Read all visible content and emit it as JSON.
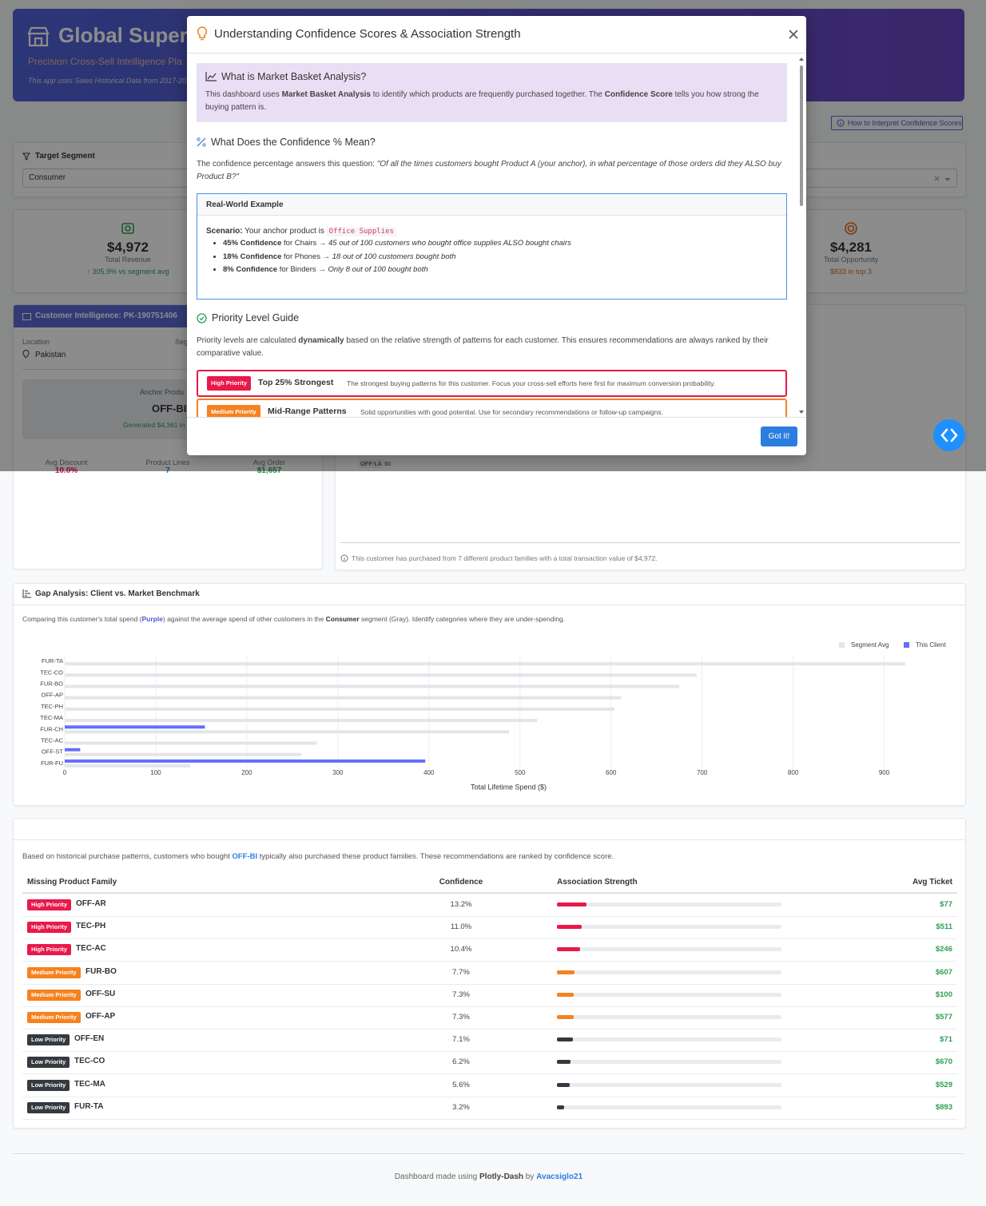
{
  "header": {
    "title": "Global Supers",
    "subtitle": "Precision Cross-Sell Intelligence Pla",
    "note": "This app uses Sales Historical Data from 2017-20"
  },
  "help_button": "How to Interpret Confidence Scores",
  "filters": {
    "label": "Target Segment",
    "segment": "Consumer"
  },
  "kpis": [
    {
      "value": "$4,972",
      "label": "Total Revenue",
      "delta": "↑ 305.9% vs segment avg"
    },
    {
      "value": "$4,281",
      "label": "Total Opportunity",
      "delta": "$833 in top 3"
    }
  ],
  "customer": {
    "title": "Customer Intelligence: PK-190751406",
    "location_label": "Location",
    "location": "Pakistan",
    "segment_label": "Seg",
    "anchor_label": "Anchor Produ",
    "anchor": "OFF-BI",
    "anchor_note": "Generated $4,361 in",
    "stats": [
      {
        "label": "Avg Discount",
        "value": "10.0%"
      },
      {
        "label": "Product Lines",
        "value": "7"
      },
      {
        "label": "Avg Order",
        "value": "$1,657"
      }
    ]
  },
  "history": {
    "item": "OFF-LA",
    "value": "$6",
    "note": "This customer has purchased from 7 different product families with a total transaction value of $4,972."
  },
  "modal": {
    "title": "Understanding Confidence Scores & Association Strength",
    "mba_title": "What is Market Basket Analysis?",
    "mba_text": [
      "This dashboard uses ",
      "Market Basket Analysis",
      " to identify which products are frequently purchased together. The ",
      "Confidence Score",
      " tells you how strong the buying pattern is."
    ],
    "conf_title": "What Does the Confidence % Mean?",
    "conf_text": [
      "The confidence percentage answers this question: ",
      "\"Of all the times customers bought Product A (your anchor), in what percentage of those orders did they ALSO buy Product B?\""
    ],
    "example_title": "Real-World Example",
    "scenario": [
      "Scenario:",
      " Your anchor product is ",
      "Office Supplies"
    ],
    "bullets": [
      {
        "strong": "45% Confidence",
        "text": " for Chairs → ",
        "em": "45 out of 100 customers who bought office supplies ALSO bought chairs"
      },
      {
        "strong": "18% Confidence",
        "text": " for Phones → ",
        "em": "18 out of 100 customers bought both"
      },
      {
        "strong": "8% Confidence",
        "text": " for Binders → ",
        "em": "Only 8 out of 100 bought both"
      }
    ],
    "priority_title": "Priority Level Guide",
    "priority_text": [
      "Priority levels are calculated ",
      "dynamically",
      " based on the relative strength of patterns for each customer. This ensures recommendations are always ranked by their comparative value."
    ],
    "priorities": [
      {
        "badge": "High Priority",
        "name": "Top 25% Strongest",
        "desc": "The strongest buying patterns for this customer. Focus your cross-sell efforts here first for maximum conversion probability.",
        "color": "#e8194b"
      },
      {
        "badge": "Medium Priority",
        "name": "Mid-Range Patterns",
        "desc": "Solid opportunities with good potential. Use for secondary recommendations or follow-up campaigns.",
        "color": "#f58220"
      }
    ],
    "button": "Got it!"
  },
  "gap_analysis": {
    "description": [
      "Comparing this customer's total spend (",
      "Purple",
      ") against the average spend of other customers in the ",
      "Consumer",
      " segment (Gray). Identify categories where they are under-spending."
    ]
  },
  "chart_data": {
    "type": "bar",
    "orientation": "horizontal",
    "title": "Gap Analysis: Client vs. Market Benchmark",
    "categories": [
      "FUR-TA",
      "TEC-CO",
      "FUR-BO",
      "OFF-AP",
      "TEC-PH",
      "TEC-MA",
      "FUR-CH",
      "TEC-AC",
      "OFF-ST",
      "FUR-FU"
    ],
    "series": [
      {
        "name": "Segment Avg",
        "color": "#e3e5e8",
        "values": [
          923,
          694,
          675,
          611,
          604,
          519,
          488,
          277,
          260,
          138
        ]
      },
      {
        "name": "This Client",
        "color": "#636efa",
        "values": [
          0,
          0,
          0,
          0,
          0,
          0,
          154,
          0,
          17,
          396
        ]
      }
    ],
    "xlim": [
      0,
      975
    ],
    "xticks": [
      0,
      100,
      200,
      300,
      400,
      500,
      600,
      700,
      800,
      900
    ],
    "xlabel": "Total Lifetime Spend ($)",
    "grid": true,
    "legend": "top-right"
  },
  "recommendations": {
    "description": [
      "Based on historical purchase patterns, customers who bought ",
      "OFF-BI",
      " typically also purchased these product families. These recommendations are ranked by confidence score."
    ],
    "columns": [
      "Missing Product Family",
      "Confidence",
      "Association Strength",
      "Avg Ticket"
    ],
    "rows": [
      {
        "priority": "High Priority",
        "color": "#e8194b",
        "family": "OFF-AR",
        "confidence": 13.2,
        "confidence_label": "13.2%",
        "avg_ticket": "$77"
      },
      {
        "priority": "High Priority",
        "color": "#e8194b",
        "family": "TEC-PH",
        "confidence": 11.0,
        "confidence_label": "11.0%",
        "avg_ticket": "$511"
      },
      {
        "priority": "High Priority",
        "color": "#e8194b",
        "family": "TEC-AC",
        "confidence": 10.4,
        "confidence_label": "10.4%",
        "avg_ticket": "$246"
      },
      {
        "priority": "Medium Priority",
        "color": "#f58220",
        "family": "FUR-BO",
        "confidence": 7.7,
        "confidence_label": "7.7%",
        "avg_ticket": "$607"
      },
      {
        "priority": "Medium Priority",
        "color": "#f58220",
        "family": "OFF-SU",
        "confidence": 7.3,
        "confidence_label": "7.3%",
        "avg_ticket": "$100"
      },
      {
        "priority": "Medium Priority",
        "color": "#f58220",
        "family": "OFF-AP",
        "confidence": 7.3,
        "confidence_label": "7.3%",
        "avg_ticket": "$577"
      },
      {
        "priority": "Low Priority",
        "color": "#343a40",
        "family": "OFF-EN",
        "confidence": 7.1,
        "confidence_label": "7.1%",
        "avg_ticket": "$71"
      },
      {
        "priority": "Low Priority",
        "color": "#343a40",
        "family": "TEC-CO",
        "confidence": 6.2,
        "confidence_label": "6.2%",
        "avg_ticket": "$670"
      },
      {
        "priority": "Low Priority",
        "color": "#343a40",
        "family": "TEC-MA",
        "confidence": 5.6,
        "confidence_label": "5.6%",
        "avg_ticket": "$529"
      },
      {
        "priority": "Low Priority",
        "color": "#343a40",
        "family": "FUR-TA",
        "confidence": 3.2,
        "confidence_label": "3.2%",
        "avg_ticket": "$893"
      }
    ]
  },
  "footer": [
    "Dashboard made using ",
    "Plotly-Dash",
    " by ",
    "Avacsiglo21"
  ]
}
